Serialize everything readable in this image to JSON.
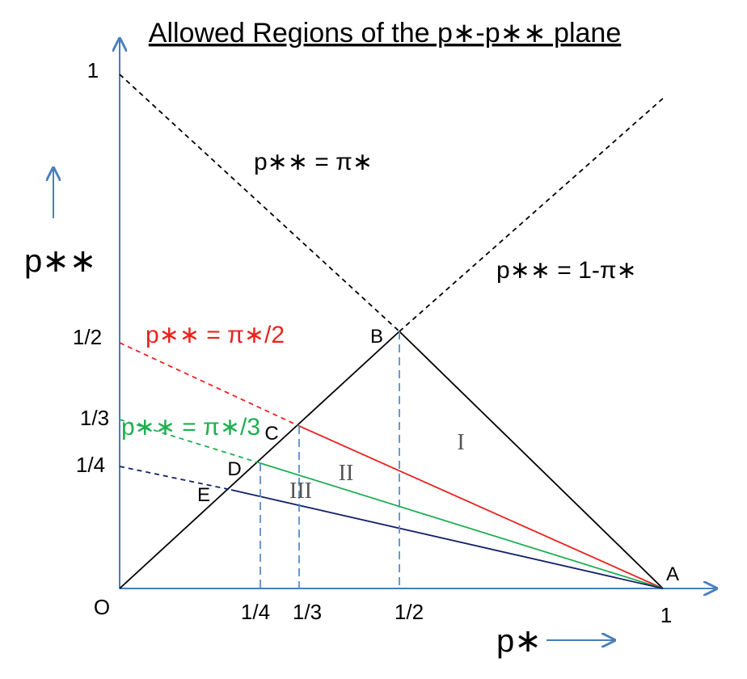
{
  "title": "Allowed Regions of the p∗-p∗∗ plane",
  "axes": {
    "x_label": "p∗",
    "y_label": "p∗∗",
    "x_ticks": [
      "1/4",
      "1/3",
      "1/2",
      "1"
    ],
    "y_ticks": [
      "1",
      "1/2",
      "1/3",
      "1/4"
    ],
    "origin": "O"
  },
  "equations": {
    "pi": "p∗∗ = π∗",
    "one_minus_pi": "p∗∗ = 1-π∗",
    "pi_half": "p∗∗ = π∗/2",
    "pi_third": "p∗∗ = π∗/3"
  },
  "points": {
    "A": "A",
    "B": "B",
    "C": "C",
    "D": "D",
    "E": "E"
  },
  "regions": [
    "I",
    "II",
    "III"
  ],
  "colors": {
    "axis": "#4a7ebb",
    "black": "#000000",
    "red": "#e8231f",
    "green": "#1fae54",
    "navy": "#12206b",
    "dashed_blue": "#5a8ec8"
  }
}
